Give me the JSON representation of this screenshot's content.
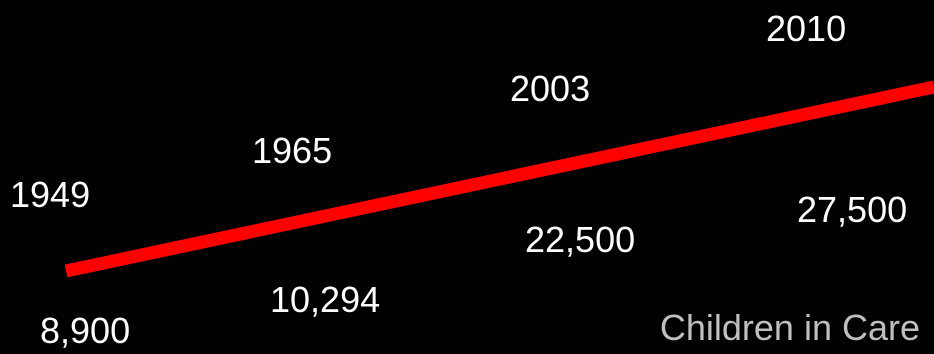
{
  "chart_data": {
    "type": "line",
    "title": "",
    "caption": "Children in Care",
    "series": [
      {
        "color": "#ff0000",
        "points": [
          {
            "year": "1949",
            "value": 8900,
            "value_label": "8,900"
          },
          {
            "year": "1965",
            "value": 10294,
            "value_label": "10,294"
          },
          {
            "year": "2003",
            "value": 22500,
            "value_label": "22,500"
          },
          {
            "year": "2010",
            "value": 27500,
            "value_label": "27,500"
          }
        ]
      }
    ],
    "grid": false,
    "legend": "none"
  },
  "colors": {
    "background": "#000000",
    "line": "#ff0000",
    "text": "#ffffff",
    "caption": "#bfbfbf"
  }
}
